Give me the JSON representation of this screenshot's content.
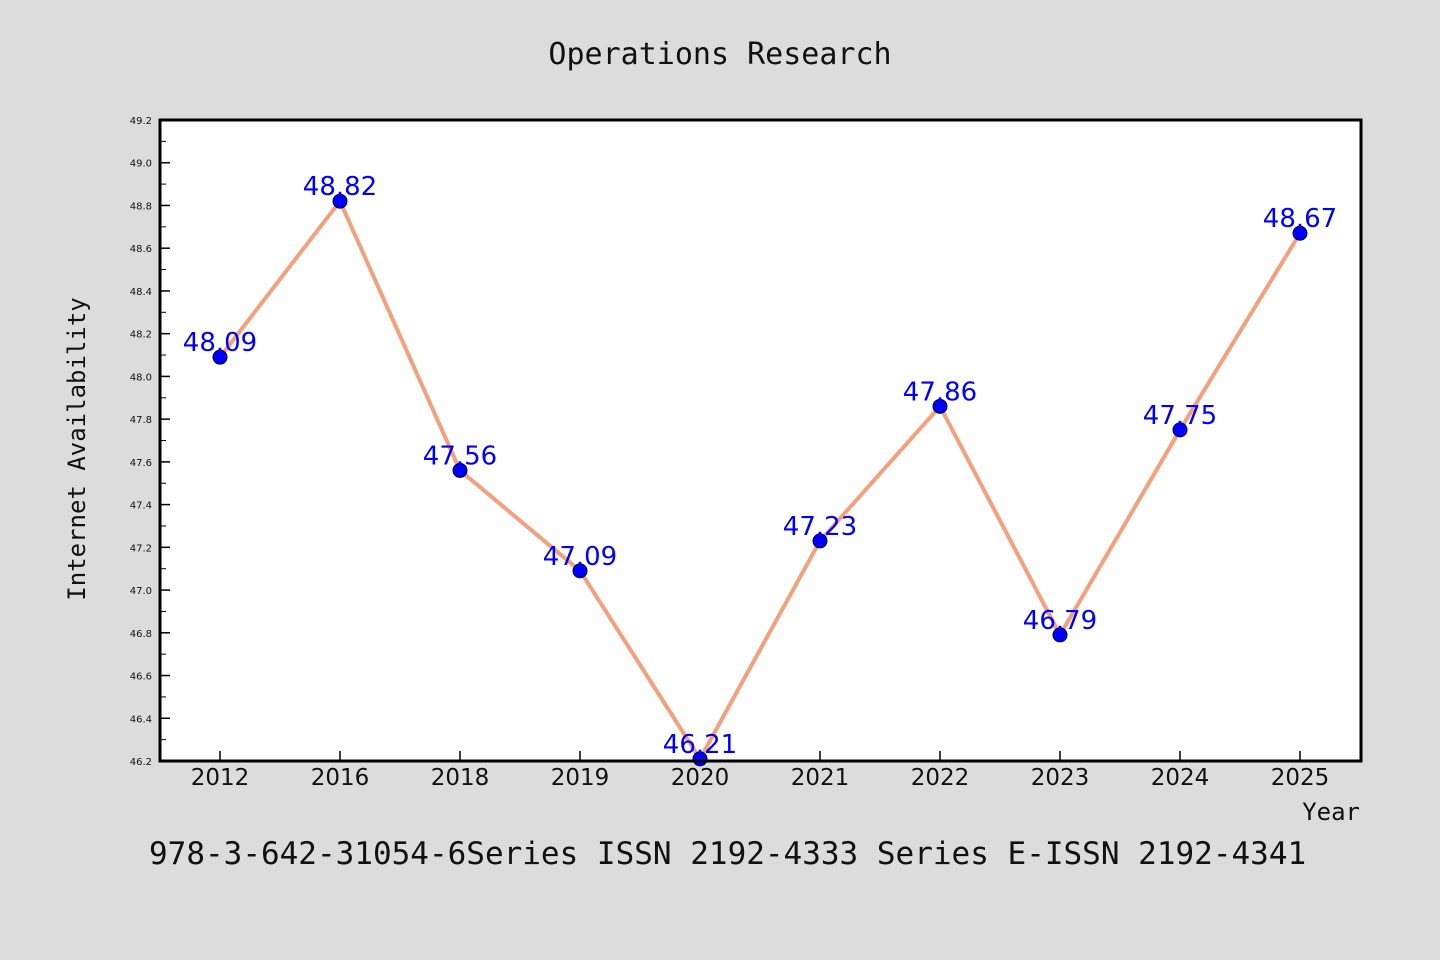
{
  "chart_data": {
    "type": "line",
    "title": "Operations Research",
    "xlabel": "Year",
    "ylabel": "Internet Availability",
    "categories": [
      "2012",
      "2016",
      "2018",
      "2019",
      "2020",
      "2021",
      "2022",
      "2023",
      "2024",
      "2025"
    ],
    "series": [
      {
        "values": [
          48.09,
          48.82,
          47.56,
          47.09,
          46.21,
          47.23,
          47.86,
          46.79,
          47.75,
          48.67
        ],
        "data_labels": [
          "48.09",
          "48.82",
          "47.56",
          "47.09",
          "46.21",
          "47.23",
          "47.86",
          "46.79",
          "47.75",
          "48.67"
        ],
        "line_color": "#f4a07c",
        "marker_color": "#0000ff"
      }
    ],
    "ylim": [
      46.2,
      49.2
    ],
    "yticks": [
      "46.2",
      "46.4",
      "46.6",
      "46.8",
      "47.0",
      "47.2",
      "47.4",
      "47.6",
      "47.8",
      "48.0",
      "48.2",
      "48.4",
      "48.6",
      "48.8",
      "49.0",
      "49.2"
    ],
    "grid": false,
    "legend": "none"
  },
  "footer": {
    "text": "978-3-642-31054-6Series ISSN 2192-4333 Series E-ISSN 2192-4341"
  },
  "colors": {
    "background": "#dcdcdc",
    "plot_background": "#ffffff",
    "line": "#f4a07c",
    "marker": "#0000ff",
    "data_label": "#0000ff"
  }
}
